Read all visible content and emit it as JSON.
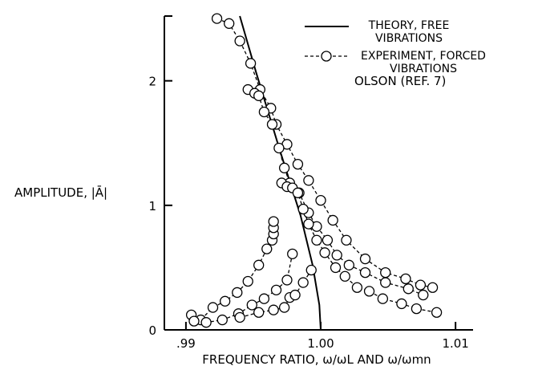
{
  "chart_data": {
    "type": "line",
    "annotation": "OLSON (REF. 7)",
    "xlabel": "FREQUENCY RATIO, ω/ωL AND ω/ωmn",
    "ylabel": "AMPLITUDE, |Ā|",
    "xlim": [
      0.9884,
      1.0113
    ],
    "ylim": [
      0,
      2.52
    ],
    "xticks": [
      {
        "value": 0.99,
        "label": ".99"
      },
      {
        "value": 1.0,
        "label": "1.00"
      },
      {
        "value": 1.01,
        "label": "1.01"
      }
    ],
    "yticks": [
      0,
      1,
      2
    ],
    "grid": false,
    "series": [
      {
        "name": "THEORY, FREE VIBRATIONS",
        "color": "#000000",
        "style": "solid",
        "markers": false,
        "x": [
          0.994,
          0.9952,
          0.997,
          0.9985,
          0.9994,
          0.9999,
          1.0
        ],
        "values": [
          2.52,
          2.07,
          1.43,
          0.92,
          0.52,
          0.2,
          0
        ]
      },
      {
        "name": "EXPERIMENT, FORCED VIBRATIONS",
        "color": "#000000",
        "style": "dashed",
        "markers": true,
        "x": [
          0.9923,
          0.9932,
          0.994,
          0.9948,
          0.9955,
          0.9963,
          0.9967,
          0.9975,
          0.9983,
          0.9991,
          1.0,
          1.0009,
          1.0019,
          1.0033,
          1.0048,
          1.0063,
          1.0074,
          1.0083,
          null,
          0.9946,
          0.9951,
          0.9954,
          0.9958,
          0.9964,
          0.9969,
          0.9973,
          0.9977,
          0.9984,
          0.9991,
          0.9997,
          1.0005,
          1.0012,
          1.0021,
          1.0033,
          1.0048,
          1.0065,
          1.0076,
          null,
          0.9971,
          0.9975,
          0.9979,
          0.9983,
          0.9987,
          0.9991,
          0.9997,
          1.0003,
          1.0011,
          1.0018,
          1.0027,
          1.0036,
          1.0046,
          1.006,
          1.0071,
          1.0086,
          null,
          0.9904,
          0.9911,
          0.992,
          0.9929,
          0.9938,
          0.9946,
          0.9954,
          0.996,
          0.9964,
          0.9965,
          0.9965,
          0.9965,
          null,
          0.9906,
          0.9915,
          0.9927,
          0.9939,
          0.9949,
          0.9958,
          0.9967,
          0.9975,
          0.9979,
          null,
          0.994,
          0.9954,
          0.9965,
          0.9973,
          0.9977,
          0.9981,
          0.9987,
          0.9993
        ],
        "values": [
          2.5,
          2.46,
          2.32,
          2.14,
          1.93,
          1.78,
          1.65,
          1.49,
          1.33,
          1.2,
          1.04,
          0.88,
          0.72,
          0.57,
          0.46,
          0.41,
          0.36,
          0.34,
          null,
          1.93,
          1.9,
          1.88,
          1.75,
          1.65,
          1.46,
          1.3,
          1.18,
          1.1,
          0.94,
          0.83,
          0.72,
          0.6,
          0.52,
          0.46,
          0.38,
          0.33,
          0.28,
          null,
          1.18,
          1.15,
          1.14,
          1.1,
          0.97,
          0.85,
          0.72,
          0.62,
          0.5,
          0.43,
          0.34,
          0.31,
          0.25,
          0.21,
          0.17,
          0.14,
          null,
          0.12,
          0.08,
          0.18,
          0.23,
          0.3,
          0.39,
          0.52,
          0.65,
          0.72,
          0.77,
          0.82,
          0.87,
          null,
          0.07,
          0.06,
          0.08,
          0.13,
          0.2,
          0.25,
          0.32,
          0.4,
          0.61,
          null,
          0.1,
          0.14,
          0.16,
          0.18,
          0.26,
          0.28,
          0.38,
          0.48
        ]
      }
    ]
  }
}
